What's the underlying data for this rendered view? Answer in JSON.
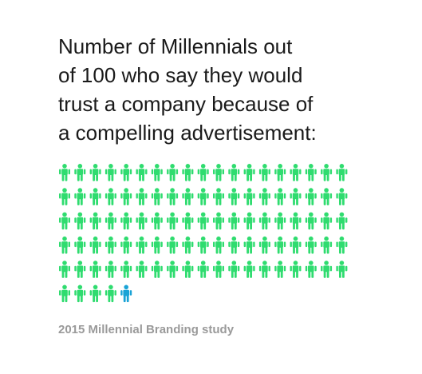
{
  "title_lines": [
    "Number of Millennials out",
    "of 100 who say they would",
    "trust a company because of",
    "a compelling advertisement:"
  ],
  "source": "2015 Millennial Branding study",
  "colors": {
    "total": "#2fdc6f",
    "highlight": "#1aa3d6",
    "text": "#1a1a1a",
    "source": "#9a9a9a"
  },
  "chart_data": {
    "type": "pictogram",
    "icon": "person-icon",
    "total": 100,
    "value": 1,
    "grid": {
      "columns": 19,
      "rows": 6
    }
  }
}
